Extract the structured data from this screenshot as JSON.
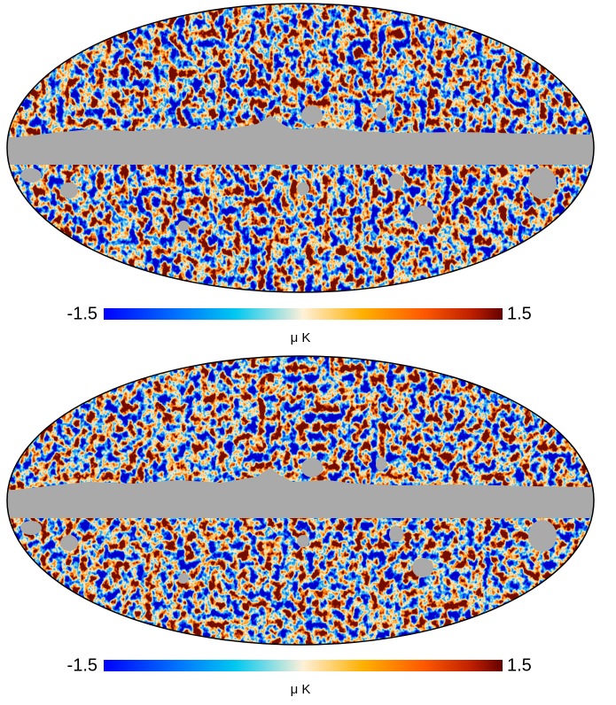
{
  "maps": [
    {
      "colorbar": {
        "min": -1.5,
        "max": 1.5,
        "unit": "μ K"
      }
    },
    {
      "colorbar": {
        "min": -1.5,
        "max": 1.5,
        "unit": "μ K"
      }
    }
  ]
}
